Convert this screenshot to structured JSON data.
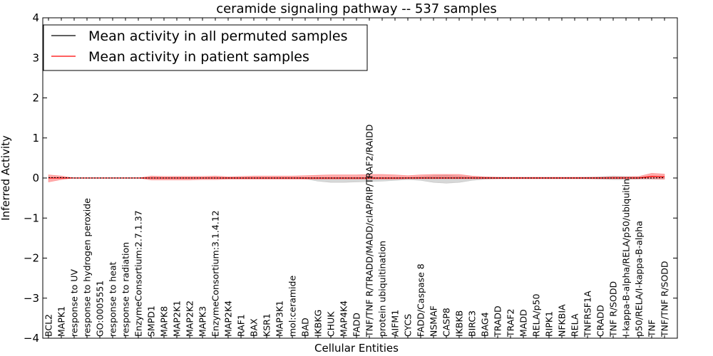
{
  "chart_data": {
    "type": "line",
    "title": "ceramide signaling pathway -- 537 samples",
    "xlabel": "Cellular Entities",
    "ylabel": "Inferred Activity",
    "ylim": [
      -4,
      4
    ],
    "yticks": [
      -4,
      -3,
      -2,
      -1,
      0,
      1,
      2,
      3,
      4
    ],
    "ytick_labels": [
      "−4",
      "−3",
      "−2",
      "−1",
      "0",
      "1",
      "2",
      "3",
      "4"
    ],
    "legend": {
      "placement": "top-left",
      "entries": [
        {
          "label": "Mean activity in all permuted samples",
          "color": "#000000"
        },
        {
          "label": "Mean activity in patient samples",
          "color": "#ff0000"
        }
      ]
    },
    "categories": [
      "BCL2",
      "MAPK1",
      "response to UV",
      "response to hydrogen peroxide",
      "GO:0005551",
      "response to heat",
      "response to radiation",
      "EnzymeConsortium:2.7.1.37",
      "SMPD1",
      "MAPK8",
      "MAP2K1",
      "MAP2K2",
      "MAPK3",
      "EnzymeConsortium:3.1.4.12",
      "MAP2K4",
      "RAF1",
      "BAX",
      "KSR1",
      "MAP3K1",
      "mol:ceramide",
      "BAD",
      "IKBKG",
      "CHUK",
      "MAP4K4",
      "FADD",
      "TNF/TNF R/TRADD/MADD/cIAP/RIP/TRAF2/RAIDD",
      "protein ubiquitination",
      "AIFM1",
      "CYCS",
      "FADD/Caspase 8",
      "NSMAF",
      "CASP8",
      "IKBKB",
      "BIRC3",
      "BAG4",
      "TRADD",
      "TRAF2",
      "MADD",
      "RELA/p50",
      "RIPK1",
      "NFKBIA",
      "RELA",
      "TNFRSF1A",
      "CRADD",
      "TNF R/SODD",
      "I-kappa-B-alpha/RELA/p50/ubiquitin",
      "p50/RELA/I-kappa-B-alpha",
      "TNF",
      "TNF/TNF R/SODD"
    ],
    "series": [
      {
        "name": "Mean activity in all permuted samples",
        "color": "#000000",
        "values": [
          0.01,
          0.01,
          0.0,
          0.0,
          0.0,
          0.0,
          0.0,
          0.0,
          0.0,
          0.0,
          0.0,
          0.0,
          0.0,
          0.0,
          0.0,
          0.0,
          0.0,
          0.0,
          0.0,
          0.0,
          0.0,
          0.0,
          0.0,
          0.0,
          0.0,
          0.0,
          0.0,
          0.0,
          0.0,
          0.0,
          0.0,
          0.0,
          0.0,
          0.0,
          0.0,
          0.0,
          0.0,
          0.0,
          0.0,
          0.0,
          0.0,
          0.0,
          0.0,
          0.0,
          0.0,
          0.0,
          0.0,
          0.0,
          0.01
        ],
        "band_upper": [
          0.01,
          0.01,
          0.0,
          0.0,
          0.0,
          0.0,
          0.0,
          0.0,
          0.0,
          0.0,
          0.0,
          0.0,
          0.0,
          0.0,
          0.0,
          0.0,
          0.0,
          0.0,
          0.0,
          0.0,
          0.0,
          0.0,
          0.0,
          0.0,
          0.0,
          0.0,
          0.0,
          0.0,
          0.01,
          0.03,
          0.06,
          0.07,
          0.05,
          0.03,
          0.02,
          0.02,
          0.01,
          0.01,
          0.01,
          0.01,
          0.01,
          0.01,
          0.02,
          0.03,
          0.05,
          0.04,
          0.03,
          0.03,
          0.03
        ],
        "band_lower": [
          0.01,
          0.01,
          0.0,
          0.0,
          0.0,
          0.0,
          0.0,
          0.0,
          0.0,
          0.0,
          0.0,
          0.0,
          0.0,
          0.0,
          0.0,
          0.0,
          0.0,
          0.0,
          0.0,
          0.0,
          -0.02,
          -0.08,
          -0.11,
          -0.11,
          -0.1,
          -0.09,
          -0.08,
          -0.06,
          -0.04,
          -0.06,
          -0.11,
          -0.13,
          -0.11,
          -0.06,
          -0.03,
          -0.02,
          -0.01,
          -0.01,
          -0.01,
          -0.01,
          -0.01,
          -0.01,
          -0.02,
          -0.03,
          -0.04,
          -0.04,
          -0.03,
          -0.03,
          -0.03
        ],
        "band_color": "#b0b0b0"
      },
      {
        "name": "Mean activity in patient samples",
        "color": "#ff0000",
        "values": [
          0.0,
          0.0,
          0.0,
          0.0,
          0.0,
          0.0,
          0.0,
          0.0,
          0.0,
          0.0,
          0.0,
          0.0,
          0.0,
          0.0,
          0.0,
          0.0,
          0.0,
          0.0,
          0.0,
          0.0,
          0.0,
          0.0,
          0.0,
          0.0,
          0.0,
          0.0,
          0.0,
          0.0,
          0.0,
          0.0,
          0.0,
          0.0,
          0.0,
          0.0,
          0.0,
          0.0,
          0.0,
          0.0,
          0.0,
          0.0,
          0.0,
          0.0,
          0.0,
          0.0,
          0.0,
          0.0,
          0.0,
          0.04,
          0.03
        ],
        "band_upper": [
          0.08,
          0.05,
          0.0,
          0.0,
          0.0,
          0.0,
          0.0,
          0.0,
          0.05,
          0.04,
          0.04,
          0.04,
          0.04,
          0.05,
          0.03,
          0.04,
          0.05,
          0.05,
          0.05,
          0.05,
          0.06,
          0.07,
          0.08,
          0.08,
          0.08,
          0.09,
          0.09,
          0.08,
          0.06,
          0.08,
          0.09,
          0.09,
          0.09,
          0.05,
          0.03,
          0.02,
          0.02,
          0.02,
          0.02,
          0.02,
          0.02,
          0.02,
          0.02,
          0.02,
          0.03,
          0.03,
          0.04,
          0.12,
          0.1
        ],
        "band_lower": [
          -0.1,
          -0.04,
          0.0,
          0.0,
          0.0,
          0.0,
          0.0,
          0.0,
          -0.05,
          -0.05,
          -0.05,
          -0.05,
          -0.04,
          -0.04,
          -0.03,
          -0.03,
          -0.03,
          -0.03,
          -0.03,
          -0.03,
          -0.03,
          -0.03,
          -0.03,
          -0.03,
          -0.03,
          -0.03,
          -0.03,
          -0.03,
          -0.02,
          -0.02,
          -0.02,
          -0.02,
          -0.02,
          -0.02,
          -0.02,
          -0.02,
          -0.02,
          -0.02,
          -0.02,
          -0.02,
          -0.02,
          -0.02,
          -0.02,
          -0.02,
          -0.02,
          -0.02,
          -0.02,
          -0.02,
          -0.03
        ],
        "band_color": "#ff6666"
      }
    ]
  }
}
